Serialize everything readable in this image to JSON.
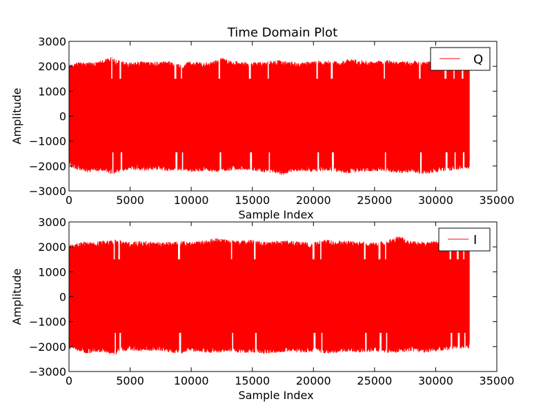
{
  "figure": {
    "title": "Time Domain Plot",
    "background": "#ffffff"
  },
  "chart_data": [
    {
      "type": "line",
      "title": "Time Domain Plot",
      "xlabel": "Sample Index",
      "ylabel": "Amplitude",
      "xlim": [
        0,
        35000
      ],
      "ylim": [
        -3000,
        3000
      ],
      "xticks": [
        0,
        5000,
        10000,
        15000,
        20000,
        25000,
        30000,
        35000
      ],
      "yticks": [
        -3000,
        -2000,
        -1000,
        0,
        1000,
        2000,
        3000
      ],
      "xtick_labels": [
        "0",
        "5000",
        "10000",
        "15000",
        "20000",
        "25000",
        "30000",
        "35000"
      ],
      "ytick_labels": [
        "−3000",
        "−2000",
        "−1000",
        "0",
        "1000",
        "2000",
        "3000"
      ],
      "grid": false,
      "legend": {
        "position": "top-right",
        "entries": [
          "Q"
        ]
      },
      "series": [
        {
          "name": "Q",
          "color": "#ff0000",
          "x_range": [
            0,
            32767
          ],
          "envelope_max": [
            [
              0,
              2050
            ],
            [
              1000,
              2200
            ],
            [
              2000,
              2150
            ],
            [
              3000,
              2300
            ],
            [
              3500,
              2380
            ],
            [
              4000,
              2250
            ],
            [
              5000,
              2150
            ],
            [
              6000,
              2200
            ],
            [
              7000,
              2180
            ],
            [
              8000,
              2230
            ],
            [
              9000,
              2100
            ],
            [
              10000,
              2200
            ],
            [
              11000,
              2150
            ],
            [
              12000,
              2250
            ],
            [
              12500,
              2350
            ],
            [
              13000,
              2250
            ],
            [
              14000,
              2200
            ],
            [
              15000,
              2150
            ],
            [
              16000,
              2200
            ],
            [
              17000,
              2250
            ],
            [
              18000,
              2200
            ],
            [
              19000,
              2150
            ],
            [
              20000,
              2200
            ],
            [
              21000,
              2250
            ],
            [
              22000,
              2200
            ],
            [
              23000,
              2300
            ],
            [
              24000,
              2250
            ],
            [
              25000,
              2200
            ],
            [
              26000,
              2250
            ],
            [
              27000,
              2200
            ],
            [
              28000,
              2200
            ],
            [
              29000,
              2250
            ],
            [
              30000,
              2200
            ],
            [
              31000,
              2150
            ],
            [
              32000,
              2200
            ],
            [
              32767,
              2100
            ]
          ],
          "envelope_min": [
            [
              0,
              -2050
            ],
            [
              1000,
              -2200
            ],
            [
              1500,
              -2300
            ],
            [
              2000,
              -2200
            ],
            [
              3000,
              -2250
            ],
            [
              3500,
              -2350
            ],
            [
              4000,
              -2250
            ],
            [
              5000,
              -2150
            ],
            [
              6000,
              -2200
            ],
            [
              7000,
              -2150
            ],
            [
              8000,
              -2200
            ],
            [
              9000,
              -2200
            ],
            [
              10000,
              -2250
            ],
            [
              11000,
              -2200
            ],
            [
              12000,
              -2250
            ],
            [
              13000,
              -2200
            ],
            [
              14000,
              -2150
            ],
            [
              15000,
              -2200
            ],
            [
              16000,
              -2250
            ],
            [
              17000,
              -2300
            ],
            [
              17500,
              -2380
            ],
            [
              18000,
              -2250
            ],
            [
              19000,
              -2200
            ],
            [
              20000,
              -2250
            ],
            [
              21000,
              -2200
            ],
            [
              22000,
              -2250
            ],
            [
              23000,
              -2300
            ],
            [
              24000,
              -2250
            ],
            [
              25000,
              -2200
            ],
            [
              26000,
              -2250
            ],
            [
              27000,
              -2300
            ],
            [
              28000,
              -2250
            ],
            [
              29000,
              -2350
            ],
            [
              30000,
              -2250
            ],
            [
              31000,
              -2200
            ],
            [
              32000,
              -2150
            ],
            [
              32767,
              -2100
            ]
          ],
          "dips": [
            3500,
            4200,
            8700,
            9200,
            12300,
            14800,
            16300,
            20300,
            21500,
            25800,
            28700,
            30800,
            31500,
            32200
          ]
        }
      ]
    },
    {
      "type": "line",
      "title": "",
      "xlabel": "Sample Index",
      "ylabel": "Amplitude",
      "xlim": [
        0,
        35000
      ],
      "ylim": [
        -3000,
        3000
      ],
      "xticks": [
        0,
        5000,
        10000,
        15000,
        20000,
        25000,
        30000,
        35000
      ],
      "yticks": [
        -3000,
        -2000,
        -1000,
        0,
        1000,
        2000,
        3000
      ],
      "xtick_labels": [
        "0",
        "5000",
        "10000",
        "15000",
        "20000",
        "25000",
        "30000",
        "35000"
      ],
      "ytick_labels": [
        "−3000",
        "−2000",
        "−1000",
        "0",
        "1000",
        "2000",
        "3000"
      ],
      "grid": false,
      "legend": {
        "position": "top-right",
        "entries": [
          "I"
        ]
      },
      "series": [
        {
          "name": "I",
          "color": "#ff0000",
          "x_range": [
            0,
            32767
          ],
          "envelope_max": [
            [
              0,
              2100
            ],
            [
              1000,
              2200
            ],
            [
              2000,
              2200
            ],
            [
              3000,
              2250
            ],
            [
              4000,
              2300
            ],
            [
              5000,
              2200
            ],
            [
              6000,
              2250
            ],
            [
              7000,
              2200
            ],
            [
              8000,
              2200
            ],
            [
              9000,
              2250
            ],
            [
              10000,
              2200
            ],
            [
              11000,
              2300
            ],
            [
              12000,
              2350
            ],
            [
              13000,
              2300
            ],
            [
              14000,
              2250
            ],
            [
              15000,
              2300
            ],
            [
              16000,
              2200
            ],
            [
              17000,
              2250
            ],
            [
              18000,
              2250
            ],
            [
              19000,
              2200
            ],
            [
              20000,
              2200
            ],
            [
              21000,
              2300
            ],
            [
              22000,
              2250
            ],
            [
              23000,
              2250
            ],
            [
              24000,
              2200
            ],
            [
              25000,
              2200
            ],
            [
              26000,
              2250
            ],
            [
              27000,
              2450
            ],
            [
              28000,
              2250
            ],
            [
              29000,
              2200
            ],
            [
              30000,
              2250
            ],
            [
              31000,
              2200
            ],
            [
              32000,
              2150
            ],
            [
              32767,
              2050
            ]
          ],
          "envelope_min": [
            [
              0,
              -2100
            ],
            [
              1000,
              -2200
            ],
            [
              1500,
              -2300
            ],
            [
              2000,
              -2250
            ],
            [
              3000,
              -2250
            ],
            [
              3800,
              -2350
            ],
            [
              4000,
              -2200
            ],
            [
              5000,
              -2150
            ],
            [
              6000,
              -2200
            ],
            [
              7000,
              -2150
            ],
            [
              8000,
              -2200
            ],
            [
              9000,
              -2300
            ],
            [
              10000,
              -2200
            ],
            [
              11000,
              -2250
            ],
            [
              12000,
              -2250
            ],
            [
              13000,
              -2200
            ],
            [
              14000,
              -2250
            ],
            [
              15000,
              -2250
            ],
            [
              16000,
              -2300
            ],
            [
              17000,
              -2250
            ],
            [
              18000,
              -2200
            ],
            [
              19000,
              -2250
            ],
            [
              20000,
              -2200
            ],
            [
              21000,
              -2300
            ],
            [
              22000,
              -2250
            ],
            [
              23000,
              -2200
            ],
            [
              24000,
              -2250
            ],
            [
              25000,
              -2200
            ],
            [
              26000,
              -2250
            ],
            [
              27000,
              -2250
            ],
            [
              28000,
              -2200
            ],
            [
              29000,
              -2250
            ],
            [
              30000,
              -2200
            ],
            [
              31000,
              -2150
            ],
            [
              32000,
              -2100
            ],
            [
              32767,
              -2050
            ]
          ],
          "dips": [
            3700,
            4100,
            9000,
            13300,
            15200,
            20000,
            20600,
            24200,
            25400,
            25900,
            31200,
            31800,
            32300
          ]
        }
      ]
    }
  ]
}
